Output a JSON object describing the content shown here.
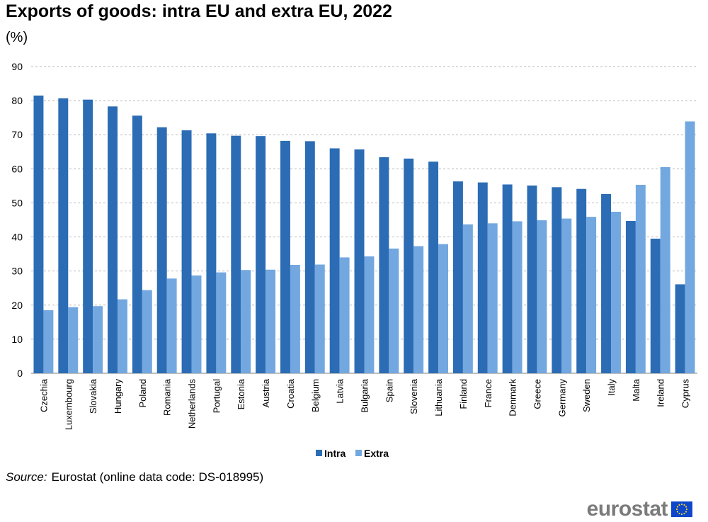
{
  "title": "Exports of goods: intra EU and extra EU, 2022",
  "unit": "(%)",
  "source_label": "Source:",
  "source_text": "Eurostat (online data code: DS-018995)",
  "logo_text": "eurostat",
  "colors": {
    "intra": "#2b6cb5",
    "extra": "#73a7df",
    "grid": "#b8b8b8",
    "axis": "#7f7f7f",
    "flag": "#0e47cb",
    "stars": "#ffd617"
  },
  "chart_data": {
    "type": "bar",
    "title": "Exports of goods: intra EU and extra EU, 2022",
    "xlabel": "",
    "ylabel": "(%)",
    "ylim": [
      0,
      90
    ],
    "yticks": [
      0,
      10,
      20,
      30,
      40,
      50,
      60,
      70,
      80,
      90
    ],
    "grid": true,
    "legend": "bottom-center",
    "categories": [
      "Czechia",
      "Luxembourg",
      "Slovakia",
      "Hungary",
      "Poland",
      "Romania",
      "Netherlands",
      "Portugal",
      "Estonia",
      "Austria",
      "Croatia",
      "Belgium",
      "Latvia",
      "Bulgaria",
      "Spain",
      "Slovenia",
      "Lithuania",
      "Finland",
      "France",
      "Denmark",
      "Greece",
      "Germany",
      "Sweden",
      "Italy",
      "Malta",
      "Ireland",
      "Cyprus"
    ],
    "series": [
      {
        "name": "Intra",
        "values": [
          81.5,
          80.7,
          80.3,
          78.3,
          75.6,
          72.2,
          71.3,
          70.4,
          69.7,
          69.6,
          68.2,
          68.1,
          66.0,
          65.7,
          63.4,
          63.0,
          62.1,
          56.3,
          56.0,
          55.4,
          55.1,
          54.6,
          54.1,
          52.6,
          44.7,
          39.5,
          26.1
        ]
      },
      {
        "name": "Extra",
        "values": [
          18.5,
          19.4,
          19.7,
          21.7,
          24.4,
          27.8,
          28.7,
          29.6,
          30.3,
          30.4,
          31.8,
          31.9,
          34.0,
          34.3,
          36.6,
          37.3,
          37.9,
          43.7,
          44.0,
          44.6,
          44.9,
          45.4,
          45.9,
          47.4,
          55.3,
          60.5,
          73.9
        ]
      }
    ]
  }
}
